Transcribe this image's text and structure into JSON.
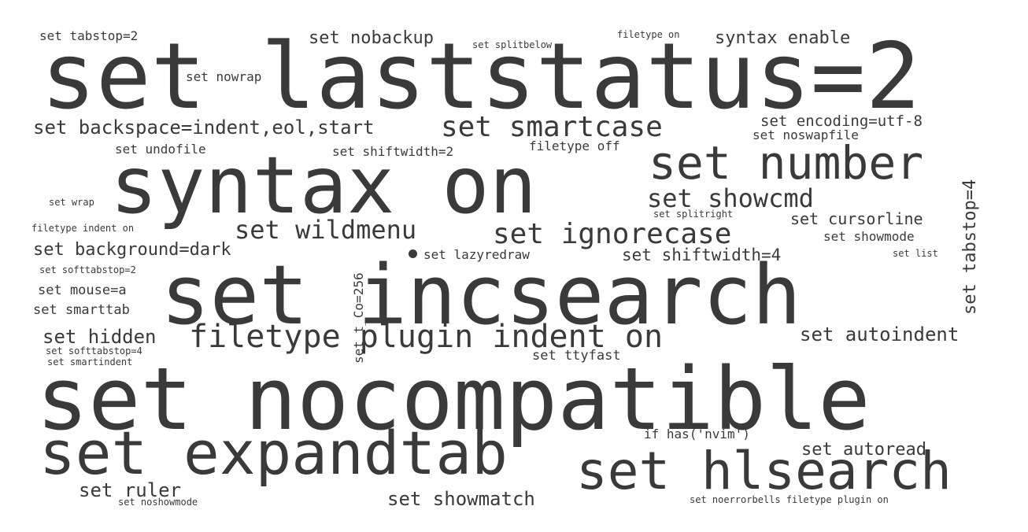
{
  "text_color": "#3a3a3a",
  "background": "#ffffff",
  "words": [
    {
      "text": "set laststatus=2"
    },
    {
      "text": "syntax on"
    },
    {
      "text": "set incsearch"
    },
    {
      "text": "set nocompatible"
    },
    {
      "text": "set expandtab"
    },
    {
      "text": "set hlsearch"
    },
    {
      "text": "set number"
    },
    {
      "text": "filetype plugin indent on"
    },
    {
      "text": "set smartcase"
    },
    {
      "text": "set ignorecase"
    },
    {
      "text": "set wildmenu"
    },
    {
      "text": "set showcmd"
    },
    {
      "text": "set tabstop=4"
    },
    {
      "text": "set backspace=indent,eol,start"
    },
    {
      "text": "set background=dark"
    },
    {
      "text": "set showmatch"
    },
    {
      "text": "set shiftwidth=4"
    },
    {
      "text": "set autoindent"
    },
    {
      "text": "set autoread"
    },
    {
      "text": "set ruler"
    },
    {
      "text": "set hidden"
    },
    {
      "text": "set nobackup"
    },
    {
      "text": "syntax enable"
    },
    {
      "text": "set encoding=utf-8"
    },
    {
      "text": "set cursorline"
    },
    {
      "text": "set nowrap"
    },
    {
      "text": "set tabstop=2"
    },
    {
      "text": "set shiftwidth=2"
    },
    {
      "text": "set undofile"
    },
    {
      "text": "filetype off"
    },
    {
      "text": "set noswapfile"
    },
    {
      "text": "set showmode"
    },
    {
      "text": "set mouse=a"
    },
    {
      "text": "set smarttab"
    },
    {
      "text": "set lazyredraw"
    },
    {
      "text": "set ttyfast"
    },
    {
      "text": "set t_Co=256"
    },
    {
      "text": "if has('nvim')"
    },
    {
      "text": "set splitbelow"
    },
    {
      "text": "filetype on"
    },
    {
      "text": "set wrap"
    },
    {
      "text": "filetype indent on"
    },
    {
      "text": "set softtabstop=2"
    },
    {
      "text": "set splitright"
    },
    {
      "text": "set list"
    },
    {
      "text": "set softtabstop=4"
    },
    {
      "text": "set smartindent"
    },
    {
      "text": "set noshowmode"
    },
    {
      "text": "set noerrorbells filetype plugin on"
    }
  ]
}
